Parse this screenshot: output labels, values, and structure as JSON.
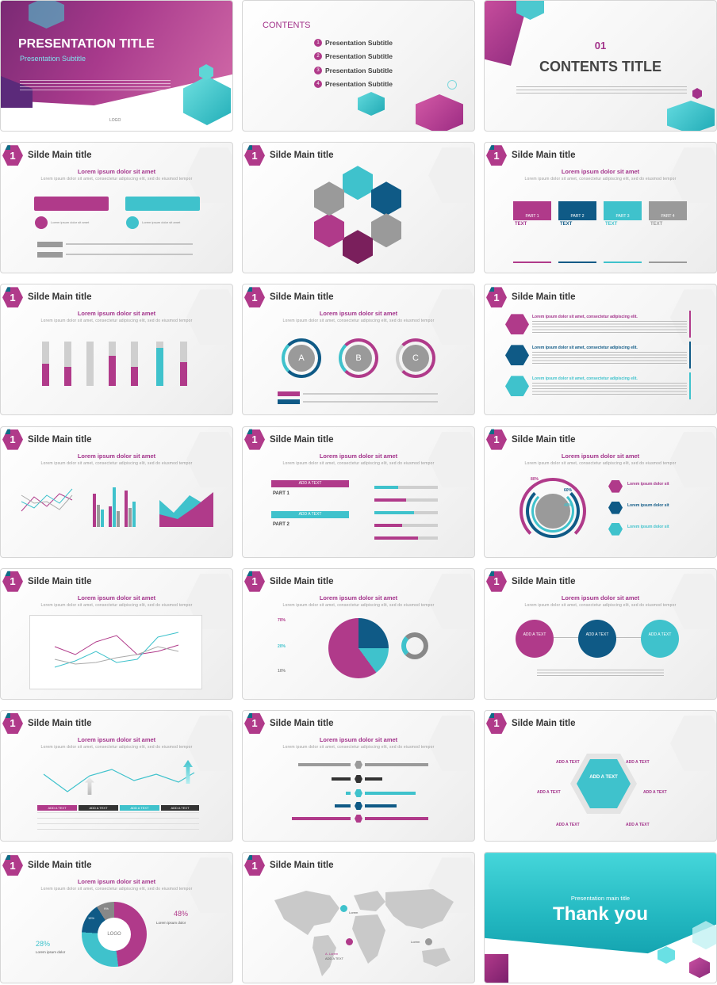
{
  "slides": {
    "s1": {
      "title": "PRESENTATION TITLE",
      "subtitle": "Presentation Subtitle",
      "logo": "LOGO"
    },
    "s2": {
      "heading": "CONTENTS",
      "items": [
        {
          "num": "1",
          "label": "Presentation Subtitle"
        },
        {
          "num": "2",
          "label": "Presentation Subtitle"
        },
        {
          "num": "3",
          "label": "Presentation Subtitle"
        },
        {
          "num": "4",
          "label": "Presentation Subtitle"
        }
      ]
    },
    "s3": {
      "num": "01",
      "title": "CONTENTS TITLE"
    },
    "common": {
      "slide_num": "1",
      "slide_title": "Silde Main title",
      "lorem_heading": "Lorem ipsum dolor sit amet",
      "lorem_sub": "Lorem ipsum dolor sit amet, consectetur adipiscing elit, sed do eiusmod tempor"
    },
    "s4": {
      "tag": "Lorem ipsum dolor sit amet"
    },
    "s6": {
      "parts": [
        "PART 1",
        "PART 2",
        "PART 3",
        "PART 4"
      ],
      "text": "TEXT"
    },
    "s8": {
      "letters": [
        "A",
        "B",
        "C"
      ]
    },
    "s9": {
      "item_title": "Lorem ipsum dolor sit amet, consectetur adipiscing elit."
    },
    "s11": {
      "add_text": "ADD A TEXT",
      "part1": "PART 1",
      "part2": "PART 2"
    },
    "s12": {
      "pct1": "80%",
      "pct2": "60%",
      "pct3": "40%",
      "item": "Lorem ipsum dolor sit"
    },
    "s14": {
      "pcts": [
        "70%",
        "20%",
        "10%"
      ]
    },
    "s15": {
      "add_text": "ADD A TEXT"
    },
    "s16": {
      "add_text": "ADD A TEXT"
    },
    "s18": {
      "center": "ADD A TEXT",
      "labels": [
        "ADD A TEXT",
        "ADD A TEXT",
        "ADD A TEXT",
        "ADD A TEXT",
        "ADD A TEXT",
        "ADD A TEXT"
      ]
    },
    "s19": {
      "logo": "LOGO",
      "pct_big": "48%",
      "pct_small": "28%",
      "seg1": "15%",
      "seg2": "9%",
      "item": "Lorem ipsum dolor"
    },
    "s20": {
      "pins": [
        "Lorem",
        "A. Lorem",
        "Lorem"
      ],
      "pin_sub": "ADD A TEXT"
    },
    "s21": {
      "sub": "Presentation main title",
      "title": "Thank you"
    }
  },
  "colors": {
    "magenta": "#b03a8a",
    "teal": "#3fc2cc",
    "navy": "#0f5a86",
    "gray": "#9a9a9a"
  }
}
